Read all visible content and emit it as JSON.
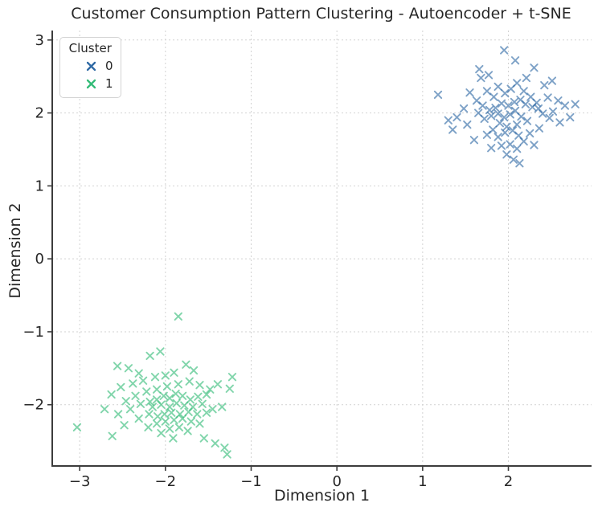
{
  "chart_data": {
    "type": "scatter",
    "title": "Customer Consumption Pattern Clustering - Autoencoder + t-SNE",
    "xlabel": "Dimension 1",
    "ylabel": "Dimension 2",
    "xlim": [
      -3.32,
      2.97
    ],
    "ylim": [
      -2.84,
      3.13
    ],
    "xticks": [
      -3,
      -2,
      -1,
      0,
      1,
      2
    ],
    "yticks": [
      -2,
      -1,
      0,
      1,
      2,
      3
    ],
    "xtick_labels": [
      "−3",
      "−2",
      "−1",
      "0",
      "1",
      "2"
    ],
    "ytick_labels": [
      "−2",
      "−1",
      "0",
      "1",
      "2",
      "3"
    ],
    "grid": true,
    "grid_style": "dashed",
    "marker": "x",
    "colors": {
      "background": "#ffffff",
      "grid": "#d2d2d2",
      "spine": "#3c3c3c",
      "text": "#262626",
      "cluster0": "#2e69a4",
      "cluster1": "#33bb77"
    },
    "legend": {
      "title": "Cluster",
      "position": "upper left",
      "entries": [
        {
          "label": "0",
          "color": "#2e69a4",
          "marker": "x"
        },
        {
          "label": "1",
          "color": "#33bb77",
          "marker": "x"
        }
      ]
    },
    "series": [
      {
        "name": "0",
        "color": "#2e69a4",
        "points": [
          [
            1.18,
            2.25
          ],
          [
            1.95,
            2.86
          ],
          [
            2.08,
            2.72
          ],
          [
            1.68,
            2.48
          ],
          [
            1.77,
            2.52
          ],
          [
            2.3,
            2.62
          ],
          [
            2.42,
            2.38
          ],
          [
            2.21,
            2.48
          ],
          [
            1.55,
            2.28
          ],
          [
            1.63,
            2.17
          ],
          [
            1.48,
            2.06
          ],
          [
            1.4,
            1.94
          ],
          [
            1.52,
            1.84
          ],
          [
            1.35,
            1.77
          ],
          [
            1.3,
            1.9
          ],
          [
            1.75,
            2.3
          ],
          [
            1.83,
            2.22
          ],
          [
            1.88,
            2.36
          ],
          [
            1.96,
            2.27
          ],
          [
            2.03,
            2.33
          ],
          [
            2.1,
            2.41
          ],
          [
            2.18,
            2.3
          ],
          [
            2.26,
            2.22
          ],
          [
            2.33,
            2.14
          ],
          [
            2.46,
            2.21
          ],
          [
            2.58,
            2.17
          ],
          [
            2.52,
            2.02
          ],
          [
            2.66,
            2.1
          ],
          [
            2.78,
            2.12
          ],
          [
            2.72,
            1.94
          ],
          [
            2.6,
            1.87
          ],
          [
            2.48,
            1.93
          ],
          [
            2.4,
            1.99
          ],
          [
            2.35,
            2.06
          ],
          [
            2.28,
            2.08
          ],
          [
            2.2,
            2.12
          ],
          [
            2.14,
            2.18
          ],
          [
            2.07,
            2.15
          ],
          [
            2.0,
            2.1
          ],
          [
            1.92,
            2.13
          ],
          [
            1.85,
            2.07
          ],
          [
            1.78,
            2.04
          ],
          [
            1.7,
            2.1
          ],
          [
            1.65,
            2.0
          ],
          [
            1.72,
            1.92
          ],
          [
            1.8,
            1.96
          ],
          [
            1.88,
            1.99
          ],
          [
            1.95,
            1.94
          ],
          [
            2.02,
            1.98
          ],
          [
            2.08,
            2.03
          ],
          [
            2.15,
            1.95
          ],
          [
            2.22,
            1.89
          ],
          [
            2.1,
            1.84
          ],
          [
            1.98,
            1.81
          ],
          [
            1.9,
            1.86
          ],
          [
            1.82,
            1.77
          ],
          [
            1.75,
            1.7
          ],
          [
            1.88,
            1.67
          ],
          [
            1.96,
            1.73
          ],
          [
            2.05,
            1.76
          ],
          [
            2.12,
            1.69
          ],
          [
            2.25,
            1.72
          ],
          [
            2.36,
            1.79
          ],
          [
            2.18,
            1.61
          ],
          [
            2.02,
            1.57
          ],
          [
            1.92,
            1.55
          ],
          [
            1.8,
            1.52
          ],
          [
            2.1,
            1.51
          ],
          [
            2.3,
            1.56
          ],
          [
            1.98,
            1.43
          ],
          [
            2.06,
            1.36
          ],
          [
            2.13,
            1.31
          ],
          [
            1.66,
            2.6
          ],
          [
            2.51,
            2.44
          ],
          [
            1.6,
            1.63
          ]
        ]
      },
      {
        "name": "1",
        "color": "#33bb77",
        "points": [
          [
            -1.85,
            -0.79
          ],
          [
            -2.18,
            -1.33
          ],
          [
            -2.06,
            -1.27
          ],
          [
            -2.43,
            -1.5
          ],
          [
            -2.56,
            -1.47
          ],
          [
            -2.31,
            -1.57
          ],
          [
            -1.76,
            -1.45
          ],
          [
            -1.67,
            -1.53
          ],
          [
            -1.9,
            -1.56
          ],
          [
            -2.0,
            -1.6
          ],
          [
            -2.12,
            -1.62
          ],
          [
            -2.26,
            -1.67
          ],
          [
            -2.38,
            -1.71
          ],
          [
            -2.52,
            -1.76
          ],
          [
            -2.63,
            -1.86
          ],
          [
            -2.71,
            -2.06
          ],
          [
            -2.46,
            -1.95
          ],
          [
            -2.35,
            -1.88
          ],
          [
            -2.22,
            -1.82
          ],
          [
            -2.1,
            -1.79
          ],
          [
            -1.98,
            -1.75
          ],
          [
            -1.85,
            -1.72
          ],
          [
            -1.72,
            -1.68
          ],
          [
            -1.6,
            -1.73
          ],
          [
            -1.48,
            -1.79
          ],
          [
            -1.39,
            -1.72
          ],
          [
            -1.25,
            -1.78
          ],
          [
            -1.22,
            -1.62
          ],
          [
            -1.52,
            -1.86
          ],
          [
            -1.62,
            -1.89
          ],
          [
            -1.71,
            -1.93
          ],
          [
            -1.8,
            -1.88
          ],
          [
            -1.88,
            -1.85
          ],
          [
            -1.95,
            -1.91
          ],
          [
            -2.02,
            -1.88
          ],
          [
            -2.1,
            -1.93
          ],
          [
            -2.18,
            -1.96
          ],
          [
            -2.29,
            -1.99
          ],
          [
            -2.41,
            -2.06
          ],
          [
            -2.55,
            -2.13
          ],
          [
            -2.15,
            -2.03
          ],
          [
            -2.05,
            -2.0
          ],
          [
            -1.95,
            -2.03
          ],
          [
            -1.87,
            -1.98
          ],
          [
            -1.78,
            -2.01
          ],
          [
            -1.68,
            -2.03
          ],
          [
            -1.57,
            -1.99
          ],
          [
            -1.45,
            -2.06
          ],
          [
            -1.34,
            -2.03
          ],
          [
            -1.52,
            -2.11
          ],
          [
            -1.63,
            -2.13
          ],
          [
            -1.73,
            -2.1
          ],
          [
            -1.83,
            -2.13
          ],
          [
            -1.93,
            -2.11
          ],
          [
            -2.01,
            -2.13
          ],
          [
            -2.09,
            -2.16
          ],
          [
            -2.19,
            -2.13
          ],
          [
            -2.31,
            -2.19
          ],
          [
            -2.48,
            -2.28
          ],
          [
            -2.2,
            -2.31
          ],
          [
            -2.1,
            -2.26
          ],
          [
            -2.0,
            -2.23
          ],
          [
            -1.9,
            -2.21
          ],
          [
            -1.8,
            -2.19
          ],
          [
            -1.7,
            -2.23
          ],
          [
            -1.6,
            -2.26
          ],
          [
            -1.95,
            -2.33
          ],
          [
            -1.84,
            -2.31
          ],
          [
            -1.74,
            -2.36
          ],
          [
            -2.05,
            -2.39
          ],
          [
            -1.91,
            -2.46
          ],
          [
            -1.55,
            -2.46
          ],
          [
            -1.42,
            -2.53
          ],
          [
            -1.31,
            -2.59
          ],
          [
            -1.28,
            -2.68
          ],
          [
            -3.03,
            -2.31
          ],
          [
            -2.62,
            -2.43
          ]
        ]
      }
    ]
  }
}
